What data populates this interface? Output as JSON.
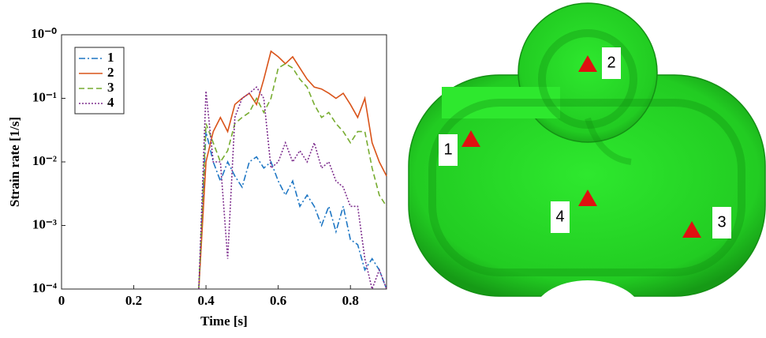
{
  "chart_data": {
    "type": "line",
    "xlabel": "Time [s]",
    "ylabel": "Strain rate [1/s]",
    "xlim": [
      0,
      0.9
    ],
    "xticks": [
      0,
      0.2,
      0.4,
      0.6,
      0.8
    ],
    "ylim": [
      0.0001,
      1
    ],
    "log_y": true,
    "yticks": [
      {
        "value": 0.0001,
        "label": "10⁻⁴"
      },
      {
        "value": 0.001,
        "label": "10⁻³"
      },
      {
        "value": 0.01,
        "label": "10⁻²"
      },
      {
        "value": 0.1,
        "label": "10⁻¹"
      },
      {
        "value": 1,
        "label": "10⁻⁰"
      }
    ],
    "legend": "upper left",
    "x": [
      0.38,
      0.4,
      0.42,
      0.44,
      0.46,
      0.48,
      0.5,
      0.52,
      0.54,
      0.56,
      0.58,
      0.6,
      0.62,
      0.64,
      0.66,
      0.68,
      0.7,
      0.72,
      0.74,
      0.76,
      0.78,
      0.8,
      0.82,
      0.84,
      0.86,
      0.88,
      0.9
    ],
    "series": [
      {
        "name": "1",
        "color": "#1f77c4",
        "linestyle": "dash-dot",
        "values": [
          0.0001,
          0.03,
          0.01,
          0.005,
          0.01,
          0.006,
          0.004,
          0.01,
          0.012,
          0.008,
          0.01,
          0.005,
          0.003,
          0.005,
          0.002,
          0.003,
          0.002,
          0.001,
          0.002,
          0.0008,
          0.002,
          0.0006,
          0.0005,
          0.0002,
          0.0003,
          0.0002,
          0.0001
        ]
      },
      {
        "name": "2",
        "color": "#d95319",
        "linestyle": "solid",
        "values": [
          0.0001,
          0.01,
          0.03,
          0.05,
          0.03,
          0.08,
          0.1,
          0.12,
          0.08,
          0.2,
          0.55,
          0.45,
          0.35,
          0.45,
          0.3,
          0.2,
          0.15,
          0.14,
          0.12,
          0.1,
          0.12,
          0.08,
          0.05,
          0.1,
          0.02,
          0.01,
          0.006
        ]
      },
      {
        "name": "3",
        "color": "#77ac30",
        "linestyle": "dash",
        "values": [
          0.0001,
          0.04,
          0.02,
          0.01,
          0.015,
          0.04,
          0.05,
          0.06,
          0.1,
          0.06,
          0.1,
          0.3,
          0.35,
          0.3,
          0.2,
          0.15,
          0.08,
          0.05,
          0.06,
          0.04,
          0.03,
          0.02,
          0.03,
          0.03,
          0.008,
          0.003,
          0.002
        ]
      },
      {
        "name": "4",
        "color": "#7e2f8e",
        "linestyle": "dot",
        "values": [
          0.0001,
          0.13,
          0.01,
          0.01,
          0.0003,
          0.05,
          0.1,
          0.12,
          0.15,
          0.1,
          0.008,
          0.01,
          0.02,
          0.01,
          0.015,
          0.01,
          0.02,
          0.008,
          0.01,
          0.005,
          0.004,
          0.002,
          0.002,
          0.0003,
          0.0001,
          0.0002,
          0.0001
        ]
      }
    ]
  },
  "figure": {
    "markers": [
      {
        "label": "1"
      },
      {
        "label": "2"
      },
      {
        "label": "3"
      },
      {
        "label": "4"
      }
    ]
  }
}
